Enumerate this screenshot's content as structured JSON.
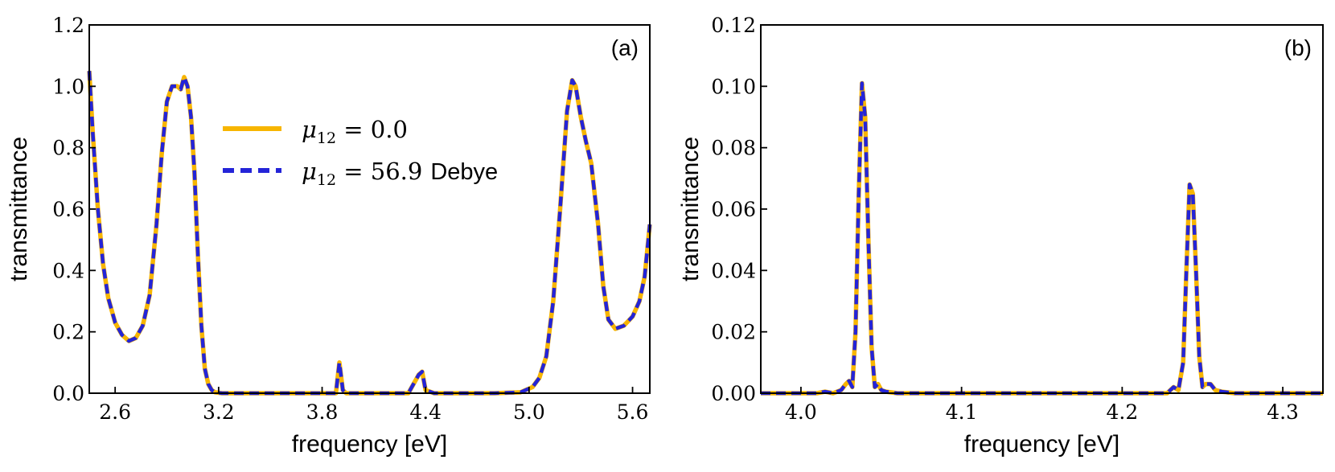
{
  "colors": {
    "series_a": "#F7B500",
    "series_b": "#2424D8",
    "axis": "#000000"
  },
  "legend": {
    "entries": [
      {
        "var": "μ",
        "sub": "12",
        "rest": " = 0.0",
        "unit": ""
      },
      {
        "var": "μ",
        "sub": "12",
        "rest": " = 56.9",
        "unit": "Debye"
      }
    ]
  },
  "chart_data": [
    {
      "type": "line",
      "panel_label": "(a)",
      "xlabel": "frequency [eV]",
      "ylabel": "transmittance",
      "xlim": [
        2.45,
        5.7
      ],
      "ylim": [
        0.0,
        1.2
      ],
      "xticks": [
        2.6,
        3.2,
        3.8,
        4.4,
        5.0,
        5.6
      ],
      "xtick_labels": [
        "2.6",
        "3.2",
        "3.8",
        "4.4",
        "5.0",
        "5.6"
      ],
      "yticks": [
        0.0,
        0.2,
        0.4,
        0.6,
        0.8,
        1.0,
        1.2
      ],
      "ytick_labels": [
        "0.0",
        "0.2",
        "0.4",
        "0.6",
        "0.8",
        "1.0",
        "1.2"
      ],
      "grid": false,
      "legend_position": "upper-center",
      "series": [
        {
          "style": "solid",
          "x": [
            2.45,
            2.47,
            2.5,
            2.53,
            2.56,
            2.6,
            2.64,
            2.68,
            2.72,
            2.76,
            2.8,
            2.84,
            2.87,
            2.9,
            2.93,
            2.96,
            2.98,
            3.0,
            3.02,
            3.04,
            3.06,
            3.08,
            3.1,
            3.12,
            3.14,
            3.16,
            3.18,
            3.22,
            3.3,
            3.5,
            3.88,
            3.9,
            3.92,
            3.94,
            4.0,
            4.3,
            4.36,
            4.38,
            4.4,
            4.45,
            4.8,
            4.95,
            5.02,
            5.06,
            5.1,
            5.14,
            5.18,
            5.22,
            5.25,
            5.27,
            5.3,
            5.33,
            5.36,
            5.4,
            5.43,
            5.46,
            5.5,
            5.55,
            5.6,
            5.64,
            5.67,
            5.7
          ],
          "y": [
            1.05,
            0.85,
            0.6,
            0.42,
            0.31,
            0.23,
            0.19,
            0.17,
            0.18,
            0.22,
            0.32,
            0.55,
            0.78,
            0.95,
            1.0,
            1.0,
            0.99,
            1.03,
            1.0,
            0.9,
            0.72,
            0.45,
            0.22,
            0.08,
            0.03,
            0.01,
            0.003,
            0.0,
            0.0,
            0.0,
            0.0,
            0.1,
            0.01,
            0.0,
            0.0,
            0.0,
            0.06,
            0.07,
            0.01,
            0.0,
            0.0,
            0.003,
            0.02,
            0.05,
            0.12,
            0.3,
            0.6,
            0.92,
            1.02,
            1.0,
            0.9,
            0.82,
            0.75,
            0.55,
            0.35,
            0.24,
            0.21,
            0.22,
            0.25,
            0.3,
            0.38,
            0.55
          ]
        },
        {
          "style": "dashed",
          "x": [
            2.45,
            2.47,
            2.5,
            2.53,
            2.56,
            2.6,
            2.64,
            2.68,
            2.72,
            2.76,
            2.8,
            2.84,
            2.87,
            2.9,
            2.93,
            2.96,
            2.98,
            3.0,
            3.02,
            3.04,
            3.06,
            3.08,
            3.1,
            3.12,
            3.14,
            3.16,
            3.18,
            3.22,
            3.3,
            3.5,
            3.88,
            3.9,
            3.92,
            3.94,
            4.0,
            4.3,
            4.36,
            4.38,
            4.4,
            4.45,
            4.8,
            4.95,
            5.02,
            5.06,
            5.1,
            5.14,
            5.18,
            5.22,
            5.25,
            5.27,
            5.3,
            5.33,
            5.36,
            5.4,
            5.43,
            5.46,
            5.5,
            5.55,
            5.6,
            5.64,
            5.67,
            5.7
          ],
          "y": [
            1.05,
            0.85,
            0.6,
            0.42,
            0.31,
            0.23,
            0.19,
            0.17,
            0.18,
            0.22,
            0.32,
            0.55,
            0.78,
            0.95,
            1.0,
            1.0,
            0.99,
            1.03,
            1.0,
            0.9,
            0.72,
            0.45,
            0.22,
            0.08,
            0.03,
            0.01,
            0.003,
            0.0,
            0.0,
            0.0,
            0.0,
            0.1,
            0.01,
            0.0,
            0.0,
            0.0,
            0.06,
            0.07,
            0.01,
            0.0,
            0.0,
            0.003,
            0.02,
            0.05,
            0.12,
            0.3,
            0.6,
            0.92,
            1.02,
            1.0,
            0.9,
            0.82,
            0.75,
            0.55,
            0.35,
            0.24,
            0.21,
            0.22,
            0.25,
            0.3,
            0.38,
            0.55
          ]
        }
      ]
    },
    {
      "type": "line",
      "panel_label": "(b)",
      "xlabel": "frequency [eV]",
      "ylabel": "transmittance",
      "xlim": [
        3.975,
        4.325
      ],
      "ylim": [
        0.0,
        0.12
      ],
      "xticks": [
        4.0,
        4.1,
        4.2,
        4.3
      ],
      "xtick_labels": [
        "4.0",
        "4.1",
        "4.2",
        "4.3"
      ],
      "yticks": [
        0.0,
        0.02,
        0.04,
        0.06,
        0.08,
        0.1,
        0.12
      ],
      "ytick_labels": [
        "0.00",
        "0.02",
        "0.04",
        "0.06",
        "0.08",
        "0.10",
        "0.12"
      ],
      "grid": false,
      "series": [
        {
          "style": "solid",
          "x": [
            3.975,
            4.0,
            4.01,
            4.015,
            4.02,
            4.025,
            4.028,
            4.03,
            4.032,
            4.034,
            4.036,
            4.038,
            4.04,
            4.042,
            4.044,
            4.046,
            4.048,
            4.05,
            4.053,
            4.06,
            4.15,
            4.2,
            4.228,
            4.232,
            4.235,
            4.238,
            4.24,
            4.242,
            4.244,
            4.246,
            4.248,
            4.25,
            4.252,
            4.255,
            4.258,
            4.262,
            4.27,
            4.325
          ],
          "y": [
            0.0,
            0.0,
            0.0,
            0.0005,
            0.0,
            0.001,
            0.003,
            0.004,
            0.002,
            0.02,
            0.065,
            0.101,
            0.09,
            0.05,
            0.015,
            0.002,
            0.003,
            0.001,
            0.0005,
            0.0,
            0.0,
            0.0,
            0.0,
            0.002,
            0.001,
            0.01,
            0.04,
            0.068,
            0.065,
            0.04,
            0.012,
            0.002,
            0.003,
            0.003,
            0.001,
            0.0005,
            0.0,
            0.0
          ]
        },
        {
          "style": "dashed",
          "x": [
            3.975,
            4.0,
            4.01,
            4.015,
            4.02,
            4.025,
            4.028,
            4.03,
            4.032,
            4.034,
            4.036,
            4.038,
            4.04,
            4.042,
            4.044,
            4.046,
            4.048,
            4.05,
            4.053,
            4.06,
            4.15,
            4.2,
            4.228,
            4.232,
            4.235,
            4.238,
            4.24,
            4.242,
            4.244,
            4.246,
            4.248,
            4.25,
            4.252,
            4.255,
            4.258,
            4.262,
            4.27,
            4.325
          ],
          "y": [
            0.0,
            0.0,
            0.0,
            0.0005,
            0.0,
            0.001,
            0.003,
            0.004,
            0.002,
            0.02,
            0.065,
            0.101,
            0.09,
            0.05,
            0.015,
            0.002,
            0.003,
            0.001,
            0.0005,
            0.0,
            0.0,
            0.0,
            0.0,
            0.002,
            0.001,
            0.01,
            0.04,
            0.068,
            0.065,
            0.04,
            0.012,
            0.002,
            0.003,
            0.003,
            0.001,
            0.0005,
            0.0,
            0.0
          ]
        }
      ]
    }
  ]
}
